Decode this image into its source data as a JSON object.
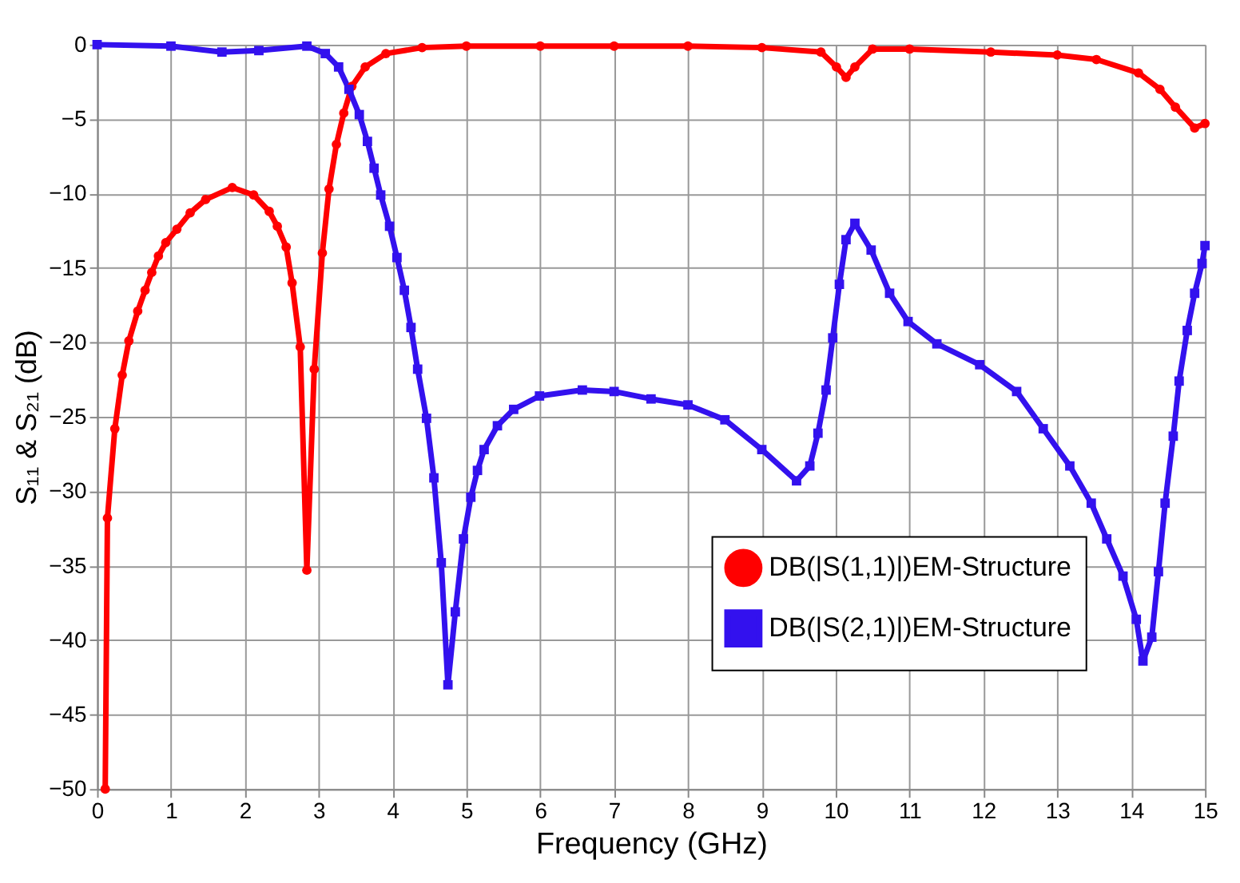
{
  "chart_data": {
    "type": "line",
    "xlabel": "Frequency (GHz)",
    "ylabel": "S₁₁ & S₂₁ (dB)",
    "xlim": [
      0,
      15
    ],
    "ylim": [
      -50,
      0
    ],
    "xticks": [
      0,
      1,
      2,
      3,
      4,
      5,
      6,
      7,
      8,
      9,
      10,
      11,
      12,
      13,
      14,
      15
    ],
    "yticks": [
      0,
      -5,
      -10,
      -15,
      -20,
      -25,
      -30,
      -35,
      -40,
      -45,
      -50
    ],
    "grid": true,
    "legend": "bottom right",
    "line_style": "solid",
    "series": [
      {
        "name": "DB(|S(1,1)|)EM-Structure",
        "color": "#ff0000",
        "marker": "circle",
        "x": [
          0.11,
          0.14,
          0.24,
          0.34,
          0.43,
          0.55,
          0.65,
          0.74,
          0.83,
          0.93,
          1.08,
          1.26,
          1.47,
          1.83,
          2.12,
          2.33,
          2.44,
          2.56,
          2.64,
          2.75,
          2.84,
          2.94,
          3.05,
          3.14,
          3.24,
          3.34,
          3.45,
          3.63,
          3.91,
          4.4,
          5,
          6,
          7,
          8,
          9,
          9.8,
          10.01,
          10.14,
          10.26,
          10.5,
          11,
          12.1,
          13,
          13.53,
          14.1,
          14.39,
          14.6,
          14.86,
          15
        ],
        "values": [
          -50,
          -31.8,
          -25.8,
          -22.2,
          -19.9,
          -17.9,
          -16.5,
          -15.3,
          -14.2,
          -13.3,
          -12.4,
          -11.3,
          -10.4,
          -9.6,
          -10.1,
          -11.2,
          -12.2,
          -13.6,
          -16,
          -20.3,
          -35.3,
          -21.8,
          -14,
          -9.7,
          -6.7,
          -4.6,
          -2.8,
          -1.5,
          -0.6,
          -0.2,
          -0.1,
          -0.1,
          -0.1,
          -0.1,
          -0.2,
          -0.5,
          -1.5,
          -2.2,
          -1.5,
          -0.3,
          -0.3,
          -0.5,
          -0.7,
          -1,
          -1.9,
          -3,
          -4.2,
          -5.6,
          -5.3
        ]
      },
      {
        "name": "DB(|S(2,1)|)EM-Structure",
        "color": "#3311ee",
        "marker": "square",
        "x": [
          0,
          1,
          1.69,
          2.19,
          2.84,
          3.09,
          3.27,
          3.41,
          3.55,
          3.66,
          3.75,
          3.84,
          3.96,
          4.06,
          4.16,
          4.25,
          4.34,
          4.46,
          4.56,
          4.66,
          4.75,
          4.85,
          4.96,
          5.06,
          5.15,
          5.24,
          5.42,
          5.64,
          5.99,
          6.57,
          7,
          7.5,
          8,
          8.5,
          9,
          9.47,
          9.65,
          9.76,
          9.87,
          9.96,
          10.05,
          10.14,
          10.26,
          10.48,
          10.73,
          10.98,
          11.37,
          11.95,
          12.45,
          12.81,
          13.17,
          13.46,
          13.67,
          13.89,
          14.07,
          14.16,
          14.28,
          14.37,
          14.46,
          14.57,
          14.65,
          14.76,
          14.86,
          14.96,
          15
        ],
        "values": [
          0,
          -0.1,
          -0.5,
          -0.4,
          -0.1,
          -0.6,
          -1.5,
          -3,
          -4.7,
          -6.5,
          -8.3,
          -10.1,
          -12.2,
          -14.3,
          -16.5,
          -19,
          -21.8,
          -25.1,
          -29.1,
          -34.8,
          -43,
          -38.1,
          -33.2,
          -30.4,
          -28.6,
          -27.2,
          -25.6,
          -24.5,
          -23.6,
          -23.2,
          -23.3,
          -23.8,
          -24.2,
          -25.2,
          -27.2,
          -29.3,
          -28.3,
          -26.1,
          -23.2,
          -19.7,
          -16.1,
          -13.1,
          -12,
          -13.8,
          -16.7,
          -18.6,
          -20.1,
          -21.5,
          -23.3,
          -25.8,
          -28.3,
          -30.8,
          -33.2,
          -35.7,
          -38.6,
          -41.4,
          -39.8,
          -35.4,
          -30.8,
          -26.3,
          -22.6,
          -19.2,
          -16.7,
          -14.7,
          -13.5
        ]
      }
    ]
  }
}
